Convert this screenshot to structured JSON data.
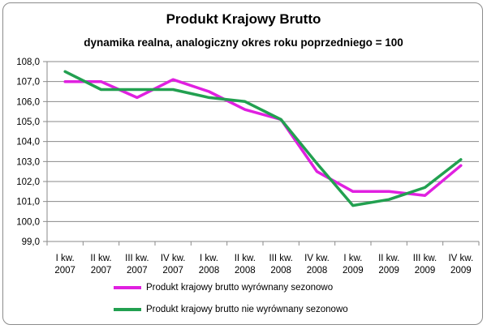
{
  "chart_data": {
    "type": "line",
    "title": "Produkt Krajowy Brutto",
    "subtitle": "dynamika realna, analogiczny okres roku poprzedniego = 100",
    "categories": [
      [
        "I kw.",
        "2007"
      ],
      [
        "II kw.",
        "2007"
      ],
      [
        "III kw.",
        "2007"
      ],
      [
        "IV kw.",
        "2007"
      ],
      [
        "I kw.",
        "2008"
      ],
      [
        "II kw.",
        "2008"
      ],
      [
        "III kw.",
        "2008"
      ],
      [
        "IV kw.",
        "2008"
      ],
      [
        "I kw.",
        "2009"
      ],
      [
        "II kw.",
        "2009"
      ],
      [
        "III kw.",
        "2009"
      ],
      [
        "IV kw.",
        "2009"
      ]
    ],
    "ylim": [
      99.0,
      108.0
    ],
    "yticks": [
      "99,0",
      "100,0",
      "101,0",
      "102,0",
      "103,0",
      "104,0",
      "105,0",
      "106,0",
      "107,0",
      "108,0"
    ],
    "grid": true,
    "legend_position": "bottom",
    "series": [
      {
        "name": "Produkt krajowy brutto wyrównany sezonowo",
        "color": "#e020e0",
        "values": [
          107.0,
          107.0,
          106.2,
          107.1,
          106.5,
          105.6,
          105.1,
          102.5,
          101.5,
          101.5,
          101.3,
          102.8
        ]
      },
      {
        "name": "Produkt krajowy brutto nie wyrównany sezonowo",
        "color": "#22a050",
        "values": [
          107.5,
          106.6,
          106.6,
          106.6,
          106.2,
          106.0,
          105.1,
          102.9,
          100.8,
          101.1,
          101.7,
          103.1
        ]
      }
    ]
  }
}
